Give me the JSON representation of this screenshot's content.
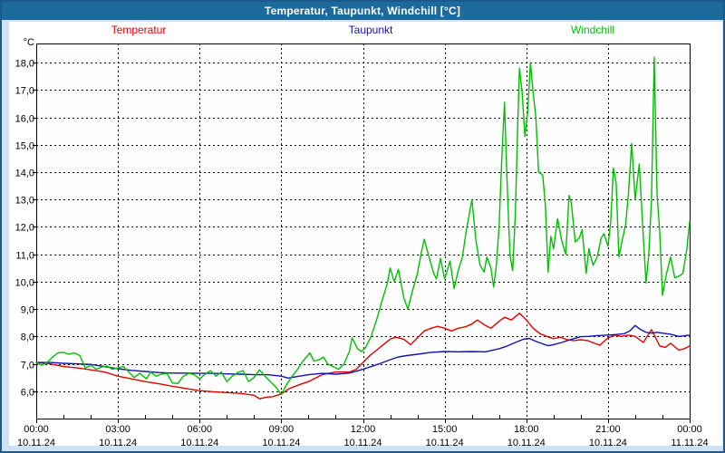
{
  "window": {
    "title": "Temperatur, Taupunkt, Windchill [°C]"
  },
  "chart_data": {
    "type": "line",
    "title": "Temperatur, Taupunkt, Windchill [°C]",
    "y_axis_label": "°C",
    "x_range": [
      0,
      24
    ],
    "y_range": [
      5.0,
      18.7
    ],
    "grid": "dashed",
    "legend_position": "top",
    "y_ticks": {
      "values": [
        6,
        7,
        8,
        9,
        10,
        11,
        12,
        13,
        14,
        15,
        16,
        17,
        18
      ],
      "labels": [
        "6,0",
        "7,0",
        "8,0",
        "9,0",
        "10,0",
        "11,0",
        "12,0",
        "13,0",
        "14,0",
        "15,0",
        "16,0",
        "17,0",
        "18,0"
      ]
    },
    "x_ticks": {
      "hours": [
        0,
        3,
        6,
        9,
        12,
        15,
        18,
        21,
        24
      ],
      "time_labels": [
        "00:00",
        "03:00",
        "06:00",
        "09:00",
        "12:00",
        "15:00",
        "18:00",
        "21:00",
        "00:00"
      ],
      "date_labels": [
        "10.11.24",
        "10.11.24",
        "10.11.24",
        "10.11.24",
        "10.11.24",
        "10.11.24",
        "10.11.24",
        "10.11.24",
        "11.11.24"
      ],
      "minor_tick_every_hours": 1
    },
    "series": [
      {
        "name": "Temperatur",
        "color": "#e60000",
        "points": [
          [
            0,
            7.05
          ],
          [
            0.5,
            7.0
          ],
          [
            1,
            6.9
          ],
          [
            1.5,
            6.85
          ],
          [
            2,
            6.78
          ],
          [
            2.5,
            6.7
          ],
          [
            3,
            6.55
          ],
          [
            3.5,
            6.45
          ],
          [
            4,
            6.35
          ],
          [
            4.5,
            6.27
          ],
          [
            5,
            6.18
          ],
          [
            5.5,
            6.1
          ],
          [
            6,
            6.02
          ],
          [
            6.5,
            5.98
          ],
          [
            7,
            5.95
          ],
          [
            7.5,
            5.92
          ],
          [
            8,
            5.85
          ],
          [
            8.2,
            5.72
          ],
          [
            8.45,
            5.78
          ],
          [
            8.7,
            5.8
          ],
          [
            9,
            5.9
          ],
          [
            9.3,
            6.1
          ],
          [
            9.7,
            6.25
          ],
          [
            10,
            6.35
          ],
          [
            10.5,
            6.6
          ],
          [
            11,
            6.7
          ],
          [
            11.5,
            6.7
          ],
          [
            11.75,
            6.8
          ],
          [
            12,
            7.05
          ],
          [
            12.25,
            7.3
          ],
          [
            12.5,
            7.5
          ],
          [
            12.75,
            7.7
          ],
          [
            13,
            7.9
          ],
          [
            13.2,
            7.97
          ],
          [
            13.5,
            7.9
          ],
          [
            13.75,
            7.7
          ],
          [
            14,
            7.95
          ],
          [
            14.25,
            8.2
          ],
          [
            14.5,
            8.3
          ],
          [
            14.75,
            8.37
          ],
          [
            15,
            8.3
          ],
          [
            15.25,
            8.2
          ],
          [
            15.5,
            8.3
          ],
          [
            15.75,
            8.35
          ],
          [
            16,
            8.45
          ],
          [
            16.2,
            8.6
          ],
          [
            16.5,
            8.4
          ],
          [
            16.7,
            8.3
          ],
          [
            17,
            8.55
          ],
          [
            17.2,
            8.7
          ],
          [
            17.45,
            8.6
          ],
          [
            17.75,
            8.85
          ],
          [
            18,
            8.6
          ],
          [
            18.25,
            8.3
          ],
          [
            18.5,
            8.1
          ],
          [
            18.75,
            8.0
          ],
          [
            19,
            7.92
          ],
          [
            19.25,
            7.97
          ],
          [
            19.5,
            7.88
          ],
          [
            19.75,
            7.85
          ],
          [
            20,
            7.88
          ],
          [
            20.25,
            7.85
          ],
          [
            20.5,
            7.75
          ],
          [
            20.7,
            7.68
          ],
          [
            21,
            7.95
          ],
          [
            21.25,
            8.05
          ],
          [
            21.5,
            8.0
          ],
          [
            21.75,
            8.05
          ],
          [
            22,
            8.0
          ],
          [
            22.3,
            7.78
          ],
          [
            22.6,
            8.25
          ],
          [
            22.9,
            7.65
          ],
          [
            23.1,
            7.6
          ],
          [
            23.3,
            7.75
          ],
          [
            23.6,
            7.5
          ],
          [
            23.8,
            7.55
          ],
          [
            24,
            7.65
          ]
        ]
      },
      {
        "name": "Taupunkt",
        "color": "#1111b4",
        "points": [
          [
            0,
            7.05
          ],
          [
            0.5,
            7.05
          ],
          [
            1,
            7.02
          ],
          [
            1.5,
            7.0
          ],
          [
            2,
            6.98
          ],
          [
            2.5,
            6.9
          ],
          [
            3,
            6.82
          ],
          [
            3.5,
            6.76
          ],
          [
            4,
            6.72
          ],
          [
            4.5,
            6.68
          ],
          [
            5,
            6.66
          ],
          [
            5.5,
            6.66
          ],
          [
            6,
            6.65
          ],
          [
            6.5,
            6.65
          ],
          [
            7,
            6.63
          ],
          [
            7.5,
            6.62
          ],
          [
            8,
            6.6
          ],
          [
            8.5,
            6.6
          ],
          [
            9,
            6.55
          ],
          [
            9.25,
            6.48
          ],
          [
            9.5,
            6.52
          ],
          [
            10,
            6.6
          ],
          [
            10.5,
            6.65
          ],
          [
            11,
            6.62
          ],
          [
            11.5,
            6.66
          ],
          [
            12,
            6.8
          ],
          [
            12.3,
            6.9
          ],
          [
            12.6,
            7.0
          ],
          [
            13,
            7.15
          ],
          [
            13.3,
            7.25
          ],
          [
            13.6,
            7.3
          ],
          [
            14,
            7.35
          ],
          [
            14.5,
            7.42
          ],
          [
            15,
            7.45
          ],
          [
            15.5,
            7.44
          ],
          [
            16,
            7.45
          ],
          [
            16.5,
            7.44
          ],
          [
            17,
            7.55
          ],
          [
            17.3,
            7.65
          ],
          [
            17.6,
            7.78
          ],
          [
            17.9,
            7.9
          ],
          [
            18.1,
            7.93
          ],
          [
            18.4,
            7.8
          ],
          [
            18.8,
            7.66
          ],
          [
            19,
            7.7
          ],
          [
            19.3,
            7.78
          ],
          [
            19.6,
            7.88
          ],
          [
            20,
            7.99
          ],
          [
            20.3,
            8.0
          ],
          [
            20.6,
            8.03
          ],
          [
            21,
            8.05
          ],
          [
            21.3,
            8.07
          ],
          [
            21.6,
            8.1
          ],
          [
            21.8,
            8.2
          ],
          [
            22,
            8.4
          ],
          [
            22.2,
            8.25
          ],
          [
            22.4,
            8.15
          ],
          [
            22.6,
            8.12
          ],
          [
            22.8,
            8.15
          ],
          [
            23,
            8.12
          ],
          [
            23.3,
            8.08
          ],
          [
            23.6,
            8.0
          ],
          [
            23.8,
            8.02
          ],
          [
            24,
            8.05
          ]
        ]
      },
      {
        "name": "Windchill",
        "color": "#00c000",
        "points": [
          [
            0,
            7.05
          ],
          [
            0.2,
            6.95
          ],
          [
            0.4,
            7.05
          ],
          [
            0.6,
            7.25
          ],
          [
            0.8,
            7.4
          ],
          [
            1,
            7.42
          ],
          [
            1.2,
            7.35
          ],
          [
            1.4,
            7.4
          ],
          [
            1.6,
            7.3
          ],
          [
            1.8,
            6.85
          ],
          [
            2,
            6.95
          ],
          [
            2.2,
            6.8
          ],
          [
            2.4,
            6.88
          ],
          [
            2.6,
            6.92
          ],
          [
            2.8,
            6.8
          ],
          [
            3,
            6.85
          ],
          [
            3.2,
            6.9
          ],
          [
            3.4,
            6.7
          ],
          [
            3.6,
            6.5
          ],
          [
            3.8,
            6.65
          ],
          [
            4.05,
            6.45
          ],
          [
            4.2,
            6.7
          ],
          [
            4.4,
            6.55
          ],
          [
            4.6,
            6.62
          ],
          [
            4.8,
            6.65
          ],
          [
            5,
            6.3
          ],
          [
            5.2,
            6.28
          ],
          [
            5.4,
            6.55
          ],
          [
            5.6,
            6.65
          ],
          [
            5.8,
            6.6
          ],
          [
            6,
            6.45
          ],
          [
            6.2,
            6.62
          ],
          [
            6.4,
            6.75
          ],
          [
            6.6,
            6.55
          ],
          [
            6.8,
            6.7
          ],
          [
            7,
            6.35
          ],
          [
            7.2,
            6.55
          ],
          [
            7.4,
            6.68
          ],
          [
            7.6,
            6.75
          ],
          [
            7.8,
            6.35
          ],
          [
            8,
            6.5
          ],
          [
            8.2,
            6.78
          ],
          [
            8.4,
            6.55
          ],
          [
            8.6,
            6.35
          ],
          [
            8.8,
            6.15
          ],
          [
            9,
            5.88
          ],
          [
            9.2,
            6.25
          ],
          [
            9.4,
            6.55
          ],
          [
            9.6,
            6.8
          ],
          [
            9.8,
            7.1
          ],
          [
            10.05,
            7.4
          ],
          [
            10.2,
            7.1
          ],
          [
            10.4,
            7.15
          ],
          [
            10.55,
            7.25
          ],
          [
            10.7,
            7.0
          ],
          [
            10.9,
            6.9
          ],
          [
            11.1,
            6.8
          ],
          [
            11.3,
            7.0
          ],
          [
            11.5,
            7.45
          ],
          [
            11.6,
            7.95
          ],
          [
            11.8,
            7.55
          ],
          [
            11.95,
            7.45
          ],
          [
            12.1,
            7.6
          ],
          [
            12.3,
            8.0
          ],
          [
            12.5,
            8.6
          ],
          [
            12.7,
            9.3
          ],
          [
            12.9,
            9.95
          ],
          [
            13,
            10.5
          ],
          [
            13.15,
            10.0
          ],
          [
            13.3,
            10.45
          ],
          [
            13.5,
            9.4
          ],
          [
            13.65,
            9.0
          ],
          [
            13.8,
            9.6
          ],
          [
            14,
            10.3
          ],
          [
            14.15,
            11.1
          ],
          [
            14.25,
            11.55
          ],
          [
            14.4,
            11.0
          ],
          [
            14.6,
            10.3
          ],
          [
            14.7,
            10.1
          ],
          [
            14.85,
            10.85
          ],
          [
            15,
            10.1
          ],
          [
            15.2,
            10.75
          ],
          [
            15.35,
            9.75
          ],
          [
            15.5,
            10.4
          ],
          [
            15.65,
            10.9
          ],
          [
            15.8,
            11.9
          ],
          [
            16,
            13.0
          ],
          [
            16.15,
            11.5
          ],
          [
            16.3,
            10.6
          ],
          [
            16.45,
            10.35
          ],
          [
            16.55,
            10.9
          ],
          [
            16.7,
            10.5
          ],
          [
            16.8,
            9.8
          ],
          [
            16.9,
            10.6
          ],
          [
            17,
            12.0
          ],
          [
            17.1,
            14.5
          ],
          [
            17.2,
            16.55
          ],
          [
            17.3,
            13.5
          ],
          [
            17.4,
            11.0
          ],
          [
            17.5,
            10.4
          ],
          [
            17.6,
            12.5
          ],
          [
            17.68,
            15.5
          ],
          [
            17.75,
            17.8
          ],
          [
            17.85,
            16.9
          ],
          [
            17.95,
            15.3
          ],
          [
            18.05,
            16.2
          ],
          [
            18.15,
            18.0
          ],
          [
            18.25,
            16.9
          ],
          [
            18.35,
            16.0
          ],
          [
            18.45,
            14.0
          ],
          [
            18.6,
            13.9
          ],
          [
            18.7,
            12.8
          ],
          [
            18.8,
            10.35
          ],
          [
            18.9,
            11.65
          ],
          [
            19,
            11.2
          ],
          [
            19.15,
            12.3
          ],
          [
            19.3,
            11.5
          ],
          [
            19.45,
            11.0
          ],
          [
            19.57,
            13.15
          ],
          [
            19.65,
            12.9
          ],
          [
            19.8,
            11.45
          ],
          [
            19.95,
            11.6
          ],
          [
            20.05,
            11.9
          ],
          [
            20.2,
            10.3
          ],
          [
            20.3,
            11.2
          ],
          [
            20.45,
            10.6
          ],
          [
            20.6,
            10.9
          ],
          [
            20.75,
            11.6
          ],
          [
            20.85,
            11.75
          ],
          [
            21,
            11.3
          ],
          [
            21.1,
            12.2
          ],
          [
            21.2,
            14.15
          ],
          [
            21.3,
            13.6
          ],
          [
            21.4,
            10.9
          ],
          [
            21.5,
            11.4
          ],
          [
            21.65,
            12.1
          ],
          [
            21.75,
            13.2
          ],
          [
            21.87,
            15.05
          ],
          [
            22,
            13.0
          ],
          [
            22.15,
            14.3
          ],
          [
            22.3,
            11.6
          ],
          [
            22.4,
            9.95
          ],
          [
            22.5,
            11.0
          ],
          [
            22.6,
            13.0
          ],
          [
            22.7,
            18.2
          ],
          [
            22.8,
            13.2
          ],
          [
            22.9,
            11.8
          ],
          [
            23,
            9.5
          ],
          [
            23.15,
            10.3
          ],
          [
            23.3,
            10.9
          ],
          [
            23.45,
            10.15
          ],
          [
            23.6,
            10.2
          ],
          [
            23.75,
            10.3
          ],
          [
            23.9,
            11.2
          ],
          [
            24,
            12.2
          ]
        ]
      }
    ]
  }
}
